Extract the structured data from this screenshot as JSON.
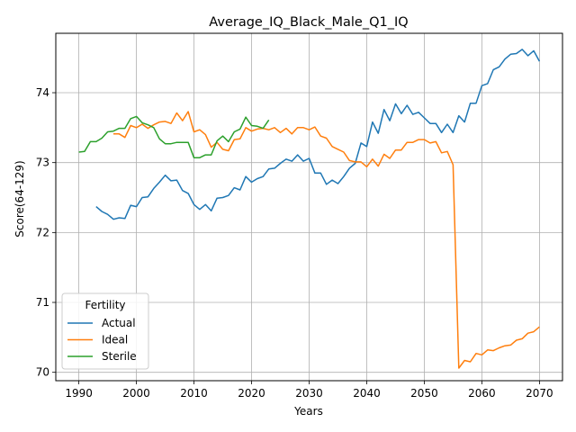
{
  "chart_data": {
    "type": "line",
    "title": "Average_IQ_Black_Male_Q1_IQ",
    "xlabel": "Years",
    "ylabel": "Score(64-129)",
    "xlim": [
      1986,
      2074
    ],
    "ylim": [
      69.88,
      74.85
    ],
    "xticks": [
      1990,
      2000,
      2010,
      2020,
      2030,
      2040,
      2050,
      2060,
      2070
    ],
    "yticks": [
      70,
      71,
      72,
      73,
      74
    ],
    "grid": true,
    "legend": {
      "title": "Fertility",
      "placement": "lower-left"
    },
    "series": [
      {
        "name": "Actual",
        "color": "#1f77b4",
        "x": [
          1993,
          1994,
          1995,
          1996,
          1997,
          1998,
          1999,
          2000,
          2001,
          2002,
          2003,
          2004,
          2005,
          2006,
          2007,
          2008,
          2009,
          2010,
          2011,
          2012,
          2013,
          2014,
          2015,
          2016,
          2017,
          2018,
          2019,
          2020,
          2021,
          2022,
          2023,
          2024,
          2025,
          2026,
          2027,
          2028,
          2029,
          2030,
          2031,
          2032,
          2033,
          2034,
          2035,
          2036,
          2037,
          2038,
          2039,
          2040,
          2041,
          2042,
          2043,
          2044,
          2045,
          2046,
          2047,
          2048,
          2049,
          2050,
          2051,
          2052,
          2053,
          2054,
          2055,
          2056,
          2057,
          2058,
          2059,
          2060,
          2061,
          2062,
          2063,
          2064,
          2065,
          2066,
          2067,
          2068,
          2069,
          2070
        ],
        "values": [
          72.37,
          72.3,
          72.26,
          72.19,
          72.21,
          72.2,
          72.39,
          72.37,
          72.5,
          72.51,
          72.63,
          72.72,
          72.82,
          72.74,
          72.75,
          72.6,
          72.56,
          72.4,
          72.33,
          72.4,
          72.31,
          72.49,
          72.5,
          72.53,
          72.64,
          72.61,
          72.8,
          72.72,
          72.77,
          72.8,
          72.91,
          72.92,
          72.99,
          73.05,
          73.02,
          73.11,
          73.02,
          73.06,
          72.85,
          72.85,
          72.69,
          72.75,
          72.7,
          72.8,
          72.92,
          72.99,
          73.28,
          73.23,
          73.58,
          73.42,
          73.76,
          73.6,
          73.84,
          73.7,
          73.82,
          73.69,
          73.72,
          73.64,
          73.56,
          73.56,
          73.43,
          73.55,
          73.43,
          73.67,
          73.58,
          73.85,
          73.85,
          74.1,
          74.13,
          74.33,
          74.37,
          74.48,
          74.55,
          74.56,
          74.62,
          74.53,
          74.6,
          74.45
        ]
      },
      {
        "name": "Ideal",
        "color": "#ff7f0e",
        "x": [
          1996,
          1997,
          1998,
          1999,
          2000,
          2001,
          2002,
          2003,
          2004,
          2005,
          2006,
          2007,
          2008,
          2009,
          2010,
          2011,
          2012,
          2013,
          2014,
          2015,
          2016,
          2017,
          2018,
          2019,
          2020,
          2021,
          2022,
          2023,
          2024,
          2025,
          2026,
          2027,
          2028,
          2029,
          2030,
          2031,
          2032,
          2033,
          2034,
          2035,
          2036,
          2037,
          2038,
          2039,
          2040,
          2041,
          2042,
          2043,
          2044,
          2045,
          2046,
          2047,
          2048,
          2049,
          2050,
          2051,
          2052,
          2053,
          2054,
          2055,
          2056,
          2057,
          2058,
          2059,
          2060,
          2061,
          2062,
          2063,
          2064,
          2065,
          2066,
          2067,
          2068,
          2069,
          2070
        ],
        "values": [
          73.41,
          73.41,
          73.36,
          73.53,
          73.5,
          73.55,
          73.49,
          73.54,
          73.58,
          73.59,
          73.56,
          73.71,
          73.6,
          73.73,
          73.44,
          73.47,
          73.4,
          73.22,
          73.29,
          73.19,
          73.17,
          73.33,
          73.34,
          73.5,
          73.45,
          73.48,
          73.49,
          73.47,
          73.5,
          73.43,
          73.49,
          73.41,
          73.5,
          73.5,
          73.47,
          73.51,
          73.38,
          73.35,
          73.23,
          73.19,
          73.15,
          73.03,
          73.01,
          73.01,
          72.94,
          73.05,
          72.95,
          73.12,
          73.06,
          73.18,
          73.18,
          73.29,
          73.29,
          73.33,
          73.33,
          73.28,
          73.3,
          73.14,
          73.16,
          72.97,
          70.06,
          70.17,
          70.15,
          70.27,
          70.25,
          70.32,
          70.31,
          70.35,
          70.38,
          70.39,
          70.46,
          70.48,
          70.56,
          70.58,
          70.65
        ]
      },
      {
        "name": "Sterile",
        "color": "#2ca02c",
        "x": [
          1990,
          1991,
          1992,
          1993,
          1994,
          1995,
          1996,
          1997,
          1998,
          1999,
          2000,
          2001,
          2002,
          2003,
          2004,
          2005,
          2006,
          2007,
          2008,
          2009,
          2010,
          2011,
          2012,
          2013,
          2014,
          2015,
          2016,
          2017,
          2018,
          2019,
          2020,
          2021,
          2022,
          2023
        ],
        "values": [
          73.15,
          73.16,
          73.3,
          73.3,
          73.35,
          73.44,
          73.45,
          73.49,
          73.49,
          73.63,
          73.66,
          73.57,
          73.54,
          73.5,
          73.34,
          73.27,
          73.27,
          73.29,
          73.29,
          73.29,
          73.07,
          73.07,
          73.11,
          73.11,
          73.31,
          73.38,
          73.3,
          73.44,
          73.48,
          73.65,
          73.53,
          73.52,
          73.49,
          73.61
        ]
      }
    ]
  }
}
